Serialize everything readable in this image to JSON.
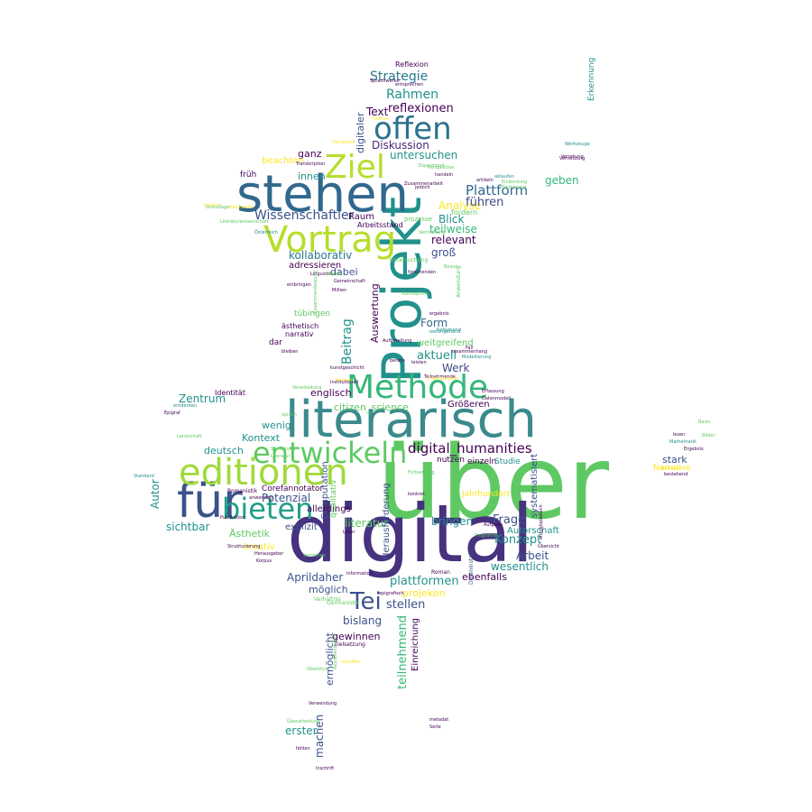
{
  "colors": {
    "background": "#ffffff",
    "palette": [
      "#440154",
      "#3b528b",
      "#21918c",
      "#5ec962",
      "#fde725"
    ]
  },
  "words": [
    {
      "text": "über",
      "color": "#5ec962"
    },
    {
      "text": "digital",
      "color": "#46327e"
    },
    {
      "text": "literarisch",
      "color": "#3b8a8c"
    },
    {
      "text": "Projekt",
      "color": "#21918c"
    },
    {
      "text": "stehen",
      "color": "#31688e"
    },
    {
      "text": "für",
      "color": "#3b528b"
    },
    {
      "text": "editionen",
      "color": "#a0da39"
    },
    {
      "text": "Methode",
      "color": "#35b779"
    },
    {
      "text": "entwickeln",
      "color": "#5ec962"
    },
    {
      "text": "Vortrag",
      "color": "#b5de2b"
    },
    {
      "text": "offen",
      "color": "#2c728e"
    },
    {
      "text": "bieten",
      "color": "#1f9e89"
    },
    {
      "text": "Ziel",
      "color": "#b5de2b"
    },
    {
      "text": "Tei",
      "color": "#3b528b"
    },
    {
      "text": "digital_humanities",
      "color": "#440154"
    },
    {
      "text": "Wissenschaftler",
      "color": "#3b528b"
    },
    {
      "text": "Plattform",
      "color": "#31688e"
    },
    {
      "text": "Strategie",
      "color": "#2a788e"
    },
    {
      "text": "Rahmen",
      "color": "#21918c"
    },
    {
      "text": "reflexionen",
      "color": "#440154"
    },
    {
      "text": "Text",
      "color": "#440154"
    },
    {
      "text": "Diskussion",
      "color": "#482878"
    },
    {
      "text": "untersuchen",
      "color": "#21918c"
    },
    {
      "text": "Analyse",
      "color": "#fde725"
    },
    {
      "text": "führen",
      "color": "#3e4989"
    },
    {
      "text": "Blick",
      "color": "#21918c"
    },
    {
      "text": "teilweise",
      "color": "#35b779"
    },
    {
      "text": "relevant",
      "color": "#440154"
    },
    {
      "text": "groß",
      "color": "#3b528b"
    },
    {
      "text": "kollaborativ",
      "color": "#2a788e"
    },
    {
      "text": "adressieren",
      "color": "#440154"
    },
    {
      "text": "dabei",
      "color": "#3b528b"
    },
    {
      "text": "Raum",
      "color": "#440154"
    },
    {
      "text": "digitaler",
      "color": "#3b528b"
    },
    {
      "text": "ganz",
      "color": "#440154"
    },
    {
      "text": "innen",
      "color": "#21918c"
    },
    {
      "text": "früh",
      "color": "#440154"
    },
    {
      "text": "beachten",
      "color": "#fde725"
    },
    {
      "text": "geben",
      "color": "#35b779"
    },
    {
      "text": "Beitrag",
      "color": "#21918c"
    },
    {
      "text": "Form",
      "color": "#31688e"
    },
    {
      "text": "aktuell",
      "color": "#21918c"
    },
    {
      "text": "weitgreifend",
      "color": "#5ec962"
    },
    {
      "text": "Werk",
      "color": "#3e4989"
    },
    {
      "text": "Auswertung",
      "color": "#440154"
    },
    {
      "text": "Zentrum",
      "color": "#21918c"
    },
    {
      "text": "Kontext",
      "color": "#21918c"
    },
    {
      "text": "wenig",
      "color": "#21918c"
    },
    {
      "text": "deutsch",
      "color": "#21918c"
    },
    {
      "text": "Autor",
      "color": "#21918c"
    },
    {
      "text": "sichtbar",
      "color": "#21918c"
    },
    {
      "text": "Potenzial",
      "color": "#3b528b"
    },
    {
      "text": "Ästhetik",
      "color": "#5ec962"
    },
    {
      "text": "kreativ",
      "color": "#fde725"
    },
    {
      "text": "explizit",
      "color": "#3b528b"
    },
    {
      "text": "Aprildaher",
      "color": "#3b528b"
    },
    {
      "text": "möglich",
      "color": "#3b528b"
    },
    {
      "text": "plattformen",
      "color": "#21918c"
    },
    {
      "text": "projeken",
      "color": "#fde725"
    },
    {
      "text": "stellen",
      "color": "#3b528b"
    },
    {
      "text": "bislang",
      "color": "#3b528b"
    },
    {
      "text": "gewinnen",
      "color": "#440154"
    },
    {
      "text": "ermöglicht",
      "color": "#3b528b"
    },
    {
      "text": "machen",
      "color": "#3b528b"
    },
    {
      "text": "erster",
      "color": "#21918c"
    },
    {
      "text": "teilnehmend",
      "color": "#35b779"
    },
    {
      "text": "Einreichung",
      "color": "#440154"
    },
    {
      "text": "Frage",
      "color": "#3b528b"
    },
    {
      "text": "Konzept",
      "color": "#21918c"
    },
    {
      "text": "Arbeit",
      "color": "#3b528b"
    },
    {
      "text": "wesentlich",
      "color": "#21918c"
    },
    {
      "text": "ebenfalls",
      "color": "#440154"
    },
    {
      "text": "Autorschaft",
      "color": "#21918c"
    },
    {
      "text": "bringen",
      "color": "#21918c"
    },
    {
      "text": "literatur",
      "color": "#5ec962"
    },
    {
      "text": "citizen_science",
      "color": "#5ec962"
    },
    {
      "text": "englisch",
      "color": "#440154"
    },
    {
      "text": "Computation",
      "color": "#3b528b"
    },
    {
      "text": "allerdings",
      "color": "#440154"
    },
    {
      "text": "Corefannotator",
      "color": "#440154"
    },
    {
      "text": "Herausforderung",
      "color": "#3b528b"
    },
    {
      "text": "Größeren",
      "color": "#440154"
    },
    {
      "text": "einzeln",
      "color": "#440154"
    },
    {
      "text": "Studie",
      "color": "#21918c"
    },
    {
      "text": "nutzen",
      "color": "#440154"
    },
    {
      "text": "systematisiert",
      "color": "#3b528b"
    },
    {
      "text": "Jahrhundert",
      "color": "#fde725"
    },
    {
      "text": "stark",
      "color": "#3b528b"
    },
    {
      "text": "Narrative",
      "color": "#fde725"
    },
    {
      "text": "Erkennung",
      "color": "#21918c"
    },
    {
      "text": "Reflexion",
      "color": "#440154"
    },
    {
      "text": "Identität",
      "color": "#440154"
    },
    {
      "text": "tübingen",
      "color": "#5ec962"
    },
    {
      "text": "ästhetisch",
      "color": "#440154"
    },
    {
      "text": "narrativ",
      "color": "#440154"
    },
    {
      "text": "dar",
      "color": "#440154"
    },
    {
      "text": "fordern",
      "color": "#5ec962"
    },
    {
      "text": "Arbeitsstand",
      "color": "#440154"
    },
    {
      "text": "qualitativ",
      "color": "#5ec962"
    },
    {
      "text": "Literaturwissenschaft",
      "color": "#5ec962"
    },
    {
      "text": "Romanistik",
      "color": "#440154"
    },
    {
      "text": "Germanistik",
      "color": "#5ec962"
    },
    {
      "text": "Zielsetzung",
      "color": "#440154"
    },
    {
      "text": "Untersuchung",
      "color": "#5ec962"
    },
    {
      "text": "prozesse",
      "color": "#5ec962"
    },
    {
      "text": "Anwendung",
      "color": "#5ec962"
    },
    {
      "text": "Zusammenarbeit",
      "color": "#440154"
    },
    {
      "text": "Dateninstanz",
      "color": "#3b528b"
    },
    {
      "text": "Datenmodell",
      "color": "#440154"
    },
    {
      "text": "Modellierung",
      "color": "#21918c"
    },
    {
      "text": "Teilnehmende",
      "color": "#440154"
    },
    {
      "text": "Gemeinschaft",
      "color": "#440154"
    },
    {
      "text": "ergebnis",
      "color": "#440154"
    },
    {
      "text": "Aufbereitung",
      "color": "#440154"
    },
    {
      "text": "forschenden",
      "color": "#440154"
    },
    {
      "text": "Verhältnis",
      "color": "#5ec962"
    },
    {
      "text": "epigrafisch",
      "color": "#440154"
    },
    {
      "text": "Mathematik",
      "color": "#21918c"
    },
    {
      "text": "Publikation",
      "color": "#440154"
    },
    {
      "text": "Verarbeitung",
      "color": "#5ec962"
    },
    {
      "text": "Herausgeber",
      "color": "#440154"
    },
    {
      "text": "information",
      "color": "#440154"
    },
    {
      "text": "Roman",
      "color": "#440154"
    },
    {
      "text": "Leser",
      "color": "#440154"
    },
    {
      "text": "Seite",
      "color": "#440154"
    },
    {
      "text": "Fall",
      "color": "#440154"
    },
    {
      "text": "Aufgabe",
      "color": "#440154"
    },
    {
      "text": "Standard",
      "color": "#21918c"
    },
    {
      "text": "Landschaft",
      "color": "#5ec962"
    },
    {
      "text": "Epigraf",
      "color": "#440154"
    },
    {
      "text": "Österreich",
      "color": "#21918c"
    },
    {
      "text": "Linguistik",
      "color": "#440154"
    },
    {
      "text": "Strukturierung",
      "color": "#440154"
    },
    {
      "text": "Verwendung",
      "color": "#440154"
    },
    {
      "text": "Repräsentation",
      "color": "#5ec962"
    },
    {
      "text": "metadat",
      "color": "#440154"
    },
    {
      "text": "enzyklopädisch",
      "color": "#440154"
    },
    {
      "text": "Transkription",
      "color": "#440154"
    },
    {
      "text": "Millien",
      "color": "#440154"
    },
    {
      "text": "Plattform",
      "color": "#fde725"
    },
    {
      "text": "Überarbeitung",
      "color": "#5ec962"
    },
    {
      "text": "Inschrift",
      "color": "#440154"
    },
    {
      "text": "fehlen",
      "color": "#440154"
    },
    {
      "text": "bestehend",
      "color": "#440154"
    },
    {
      "text": "bereits",
      "color": "#440154"
    },
    {
      "text": "Experiment",
      "color": "#5ec962"
    },
    {
      "text": "Werkzeuge",
      "color": "#21918c"
    },
    {
      "text": "Vernetzung",
      "color": "#440154"
    },
    {
      "text": "Beitrag",
      "color": "#fde725"
    },
    {
      "text": "Überblick",
      "color": "#5ec962"
    },
    {
      "text": "Basis",
      "color": "#5ec962"
    },
    {
      "text": "Gedicht",
      "color": "#fde725"
    },
    {
      "text": "Ergebnis",
      "color": "#440154"
    },
    {
      "text": "Übersicht",
      "color": "#440154"
    },
    {
      "text": "verstehen",
      "color": "#5ec962"
    },
    {
      "text": "Literatur",
      "color": "#5ec962"
    },
    {
      "text": "lesen",
      "color": "#440154"
    },
    {
      "text": "anwenden",
      "color": "#440154"
    },
    {
      "text": "schaffen",
      "color": "#fde725"
    },
    {
      "text": "Erfassung",
      "color": "#440154"
    },
    {
      "text": "handeln",
      "color": "#440154"
    },
    {
      "text": "Perspektive",
      "color": "#5ec962"
    },
    {
      "text": "jedoch",
      "color": "#440154"
    },
    {
      "text": "Interpretation",
      "color": "#fde725"
    },
    {
      "text": "bieten",
      "color": "#5ec962"
    },
    {
      "text": "Korpus",
      "color": "#440154"
    },
    {
      "text": "Bilder",
      "color": "#5ec962"
    },
    {
      "text": "artikeln",
      "color": "#440154"
    },
    {
      "text": "Programm",
      "color": "#5ec962"
    },
    {
      "text": "Formen",
      "color": "#fde725"
    },
    {
      "text": "entsprechen",
      "color": "#440154"
    },
    {
      "text": "Sprachwerke",
      "color": "#440154"
    },
    {
      "text": "einbringen",
      "color": "#440154"
    },
    {
      "text": "Handwerk",
      "color": "#fde725"
    },
    {
      "text": "kunstgeschicht",
      "color": "#440154"
    },
    {
      "text": "Bezug",
      "color": "#5ec962"
    },
    {
      "text": "entdecken",
      "color": "#21918c"
    },
    {
      "text": "Einbindung",
      "color": "#5ec962"
    },
    {
      "text": "Grundlage",
      "color": "#5ec962"
    },
    {
      "text": "Zusammenfassung",
      "color": "#5ec962"
    },
    {
      "text": "Institutionell",
      "color": "#440154"
    },
    {
      "text": "bleiben",
      "color": "#440154"
    },
    {
      "text": "weitergehend",
      "color": "#21918c"
    },
    {
      "text": "Konzeption",
      "color": "#5ec962"
    },
    {
      "text": "konkret",
      "color": "#440154"
    },
    {
      "text": "Vermittlung",
      "color": "#5ec962"
    },
    {
      "text": "leisten",
      "color": "#440154"
    },
    {
      "text": "Fortsetzung",
      "color": "#5ec962"
    },
    {
      "text": "tiefgehend",
      "color": "#21918c"
    },
    {
      "text": "ablaufen",
      "color": "#21918c"
    },
    {
      "text": "zusammenhang",
      "color": "#440154"
    },
    {
      "text": "sprach",
      "color": "#5ec962"
    },
    {
      "text": "Sammlung",
      "color": "#5ec962"
    },
    {
      "text": "Verortung",
      "color": "#440154"
    },
    {
      "text": "Einführung",
      "color": "#5ec962"
    },
    {
      "text": "Reichweite",
      "color": "#fde725"
    }
  ]
}
